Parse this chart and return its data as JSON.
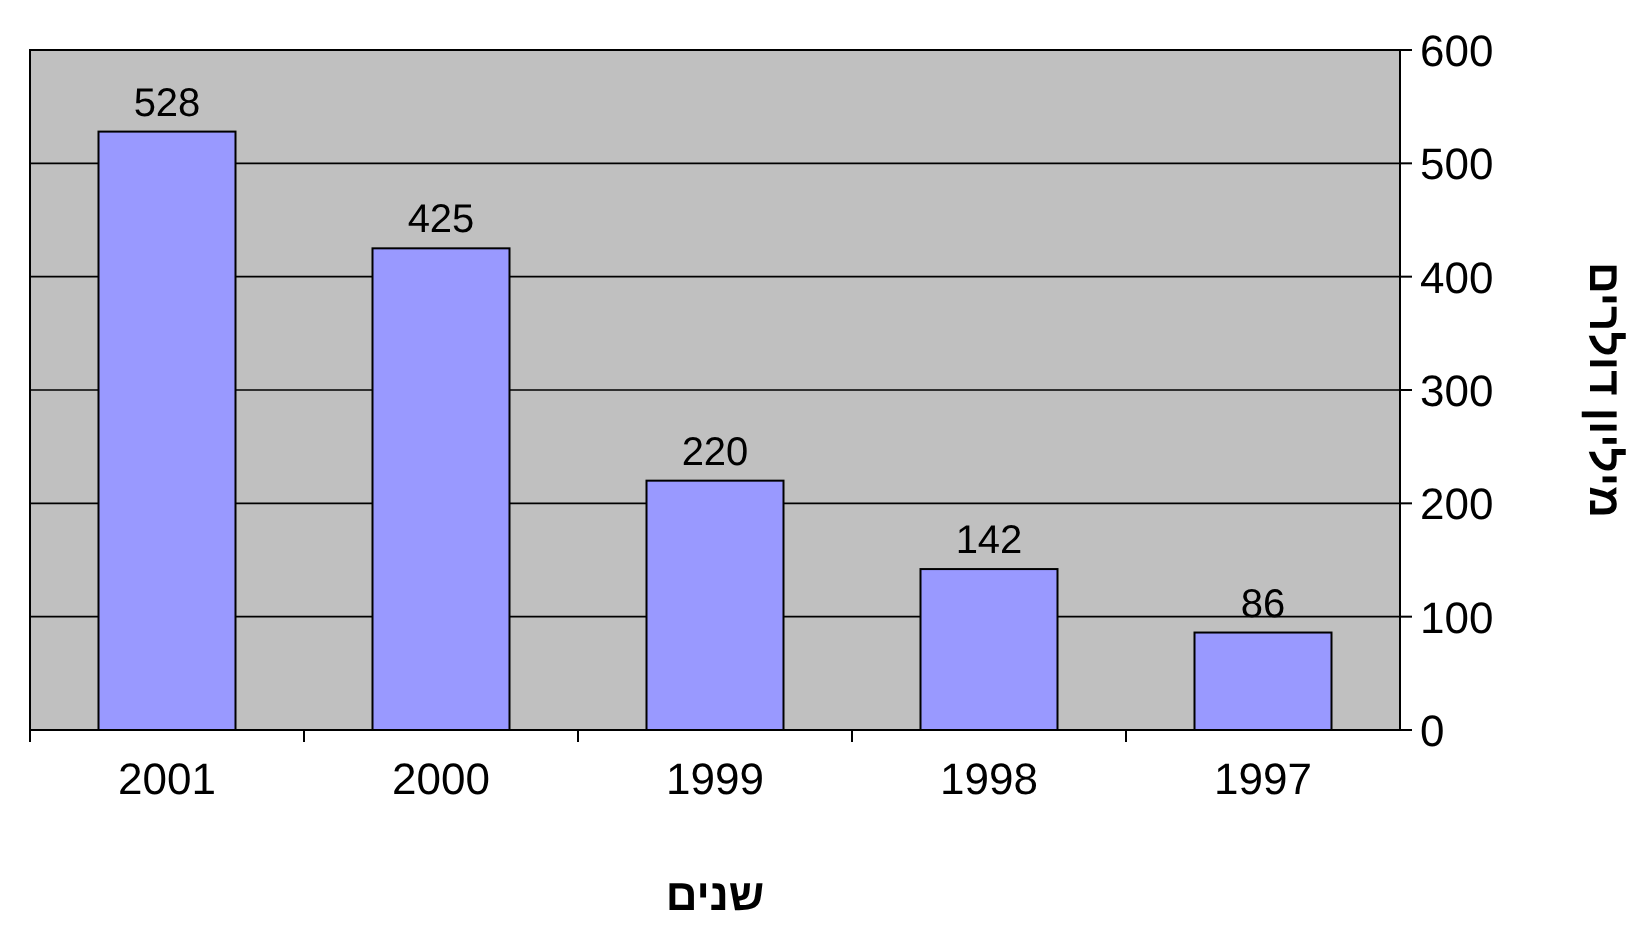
{
  "chart_data": {
    "type": "bar",
    "xlabel": "שנים",
    "ylabel": "מיליון דולרים",
    "categories": [
      "2001",
      "2000",
      "1999",
      "1998",
      "1997"
    ],
    "values": [
      528,
      425,
      220,
      142,
      86
    ],
    "color": "#9999ff",
    "ylim": [
      0,
      600
    ],
    "yticks": [
      0,
      100,
      200,
      300,
      400,
      500,
      600
    ],
    "grid": "y",
    "data_labels": true
  }
}
